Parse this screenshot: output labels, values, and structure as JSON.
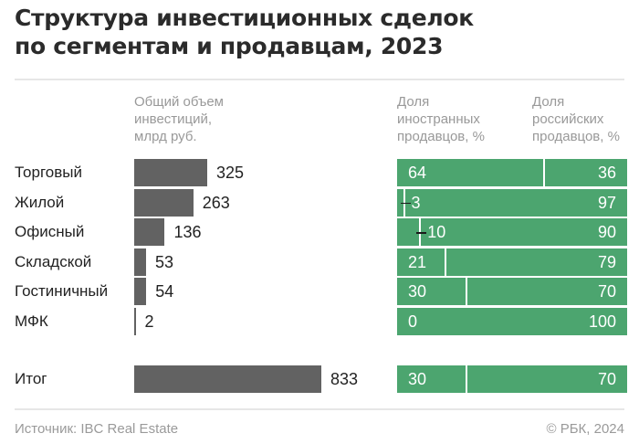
{
  "chart_data": {
    "type": "bar",
    "title": "Структура инвестиционных сделок по сегментам и продавцам, 2023",
    "title_lines": [
      "Структура инвестиционных сделок",
      "по сегментам и продавцам, 2023"
    ],
    "columns": {
      "volume": [
        "Общий объем",
        "инвестиций,",
        "млрд руб."
      ],
      "foreign": [
        "Доля",
        "иностранных",
        "продавцов, %"
      ],
      "russian": [
        "Доля",
        "российских",
        "продавцов, %"
      ]
    },
    "categories": [
      "Торговый",
      "Жилой",
      "Офисный",
      "Складской",
      "Гостиничный",
      "МФК"
    ],
    "series": [
      {
        "name": "Общий объем инвестиций, млрд руб.",
        "values": [
          325,
          263,
          136,
          53,
          54,
          2
        ]
      },
      {
        "name": "Доля иностранных продавцов, %",
        "values": [
          64,
          3,
          10,
          21,
          30,
          0
        ]
      },
      {
        "name": "Доля российских продавцов, %",
        "values": [
          36,
          97,
          90,
          79,
          70,
          100
        ]
      }
    ],
    "total": {
      "label": "Итог",
      "volume": 833,
      "foreign": 30,
      "russian": 70
    },
    "colors": {
      "volume_bar": "#626262",
      "share_bar": "#4ca56f"
    }
  },
  "footer": {
    "source": "Источник: IBC Real Estate",
    "copyright": "© РБК, 2024"
  }
}
